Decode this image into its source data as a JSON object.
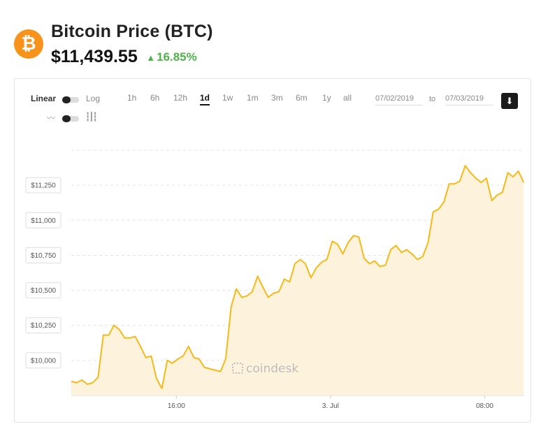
{
  "header": {
    "logo_symbol": "₿",
    "title": "Bitcoin Price (BTC)",
    "price": "$11,439.55",
    "change_arrow": "▲",
    "change": "16.85%"
  },
  "controls": {
    "scale_linear": "Linear",
    "scale_log": "Log",
    "chart_style_line_icon": "line-chart-icon",
    "chart_style_candle_icon": "candlestick-icon",
    "ranges": [
      "1h",
      "6h",
      "12h",
      "1d",
      "1w",
      "1m",
      "3m",
      "6m",
      "1y",
      "all"
    ],
    "active_range": "1d",
    "date_from": "07/02/2019",
    "to_label": "to",
    "date_to": "07/03/2019",
    "download_icon": "download-icon"
  },
  "colors": {
    "line": "#f5b919",
    "area": "#fdf3dc",
    "up": "#4fb34b",
    "logo": "#f7931a"
  },
  "watermark": "coindesk",
  "chart_data": {
    "type": "area",
    "yticks": [
      10000,
      10250,
      10500,
      10750,
      11000,
      11250
    ],
    "ytick_labels": [
      "$10,000",
      "$10,250",
      "$10,500",
      "$10,750",
      "$11,000",
      "$11,250"
    ],
    "xtick_labels": [
      "16:00",
      "3. Jul",
      "08:00"
    ],
    "xtick_hours": [
      6,
      14,
      22
    ],
    "ylim": [
      9750,
      11550
    ],
    "xlim": [
      0.55,
      24.05
    ],
    "grid": true,
    "series": [
      {
        "x": [
          0.55,
          0.83,
          1.1,
          1.38,
          1.66,
          1.94,
          2.21,
          2.49,
          2.76,
          3.04,
          3.32,
          3.59,
          3.87,
          4.14,
          4.42,
          4.7,
          4.97,
          5.25,
          5.53,
          5.8,
          6.08,
          6.35,
          6.63,
          6.91,
          7.18,
          7.46,
          7.73,
          8.01,
          8.29,
          8.56,
          8.84,
          9.11,
          9.39,
          9.67,
          9.94,
          10.22,
          10.5,
          10.77,
          11.05,
          11.32,
          11.6,
          11.88,
          12.15,
          12.43,
          12.7,
          12.98,
          13.26,
          13.53,
          13.81,
          14.09,
          14.36,
          14.64,
          14.91,
          15.19,
          15.47,
          15.74,
          16.02,
          16.29,
          16.57,
          16.85,
          17.12,
          17.4,
          17.68,
          17.95,
          18.23,
          18.5,
          18.78,
          19.06,
          19.33,
          19.61,
          19.88,
          20.16,
          20.44,
          20.71,
          20.99,
          21.26,
          21.54,
          21.82,
          22.09,
          22.37,
          22.64,
          22.92,
          23.2,
          23.47,
          23.75,
          24.02
        ],
        "values": [
          9850,
          9840,
          9860,
          9830,
          9840,
          9880,
          10180,
          10180,
          10250,
          10220,
          10160,
          10160,
          10170,
          10100,
          10020,
          10030,
          9870,
          9800,
          10000,
          9980,
          10010,
          10030,
          10100,
          10020,
          10010,
          9950,
          9940,
          9930,
          9920,
          10010,
          10380,
          10510,
          10450,
          10460,
          10490,
          10600,
          10520,
          10450,
          10480,
          10490,
          10580,
          10560,
          10690,
          10720,
          10690,
          10590,
          10660,
          10700,
          10720,
          10850,
          10830,
          10760,
          10840,
          10890,
          10880,
          10730,
          10690,
          10710,
          10670,
          10680,
          10790,
          10820,
          10770,
          10790,
          10760,
          10720,
          10740,
          10840,
          11060,
          11080,
          11130,
          11260,
          11260,
          11280,
          11390,
          11340,
          11300,
          11270,
          11300,
          11140,
          11180,
          11200,
          11340,
          11310,
          11350,
          11270
        ]
      }
    ]
  }
}
